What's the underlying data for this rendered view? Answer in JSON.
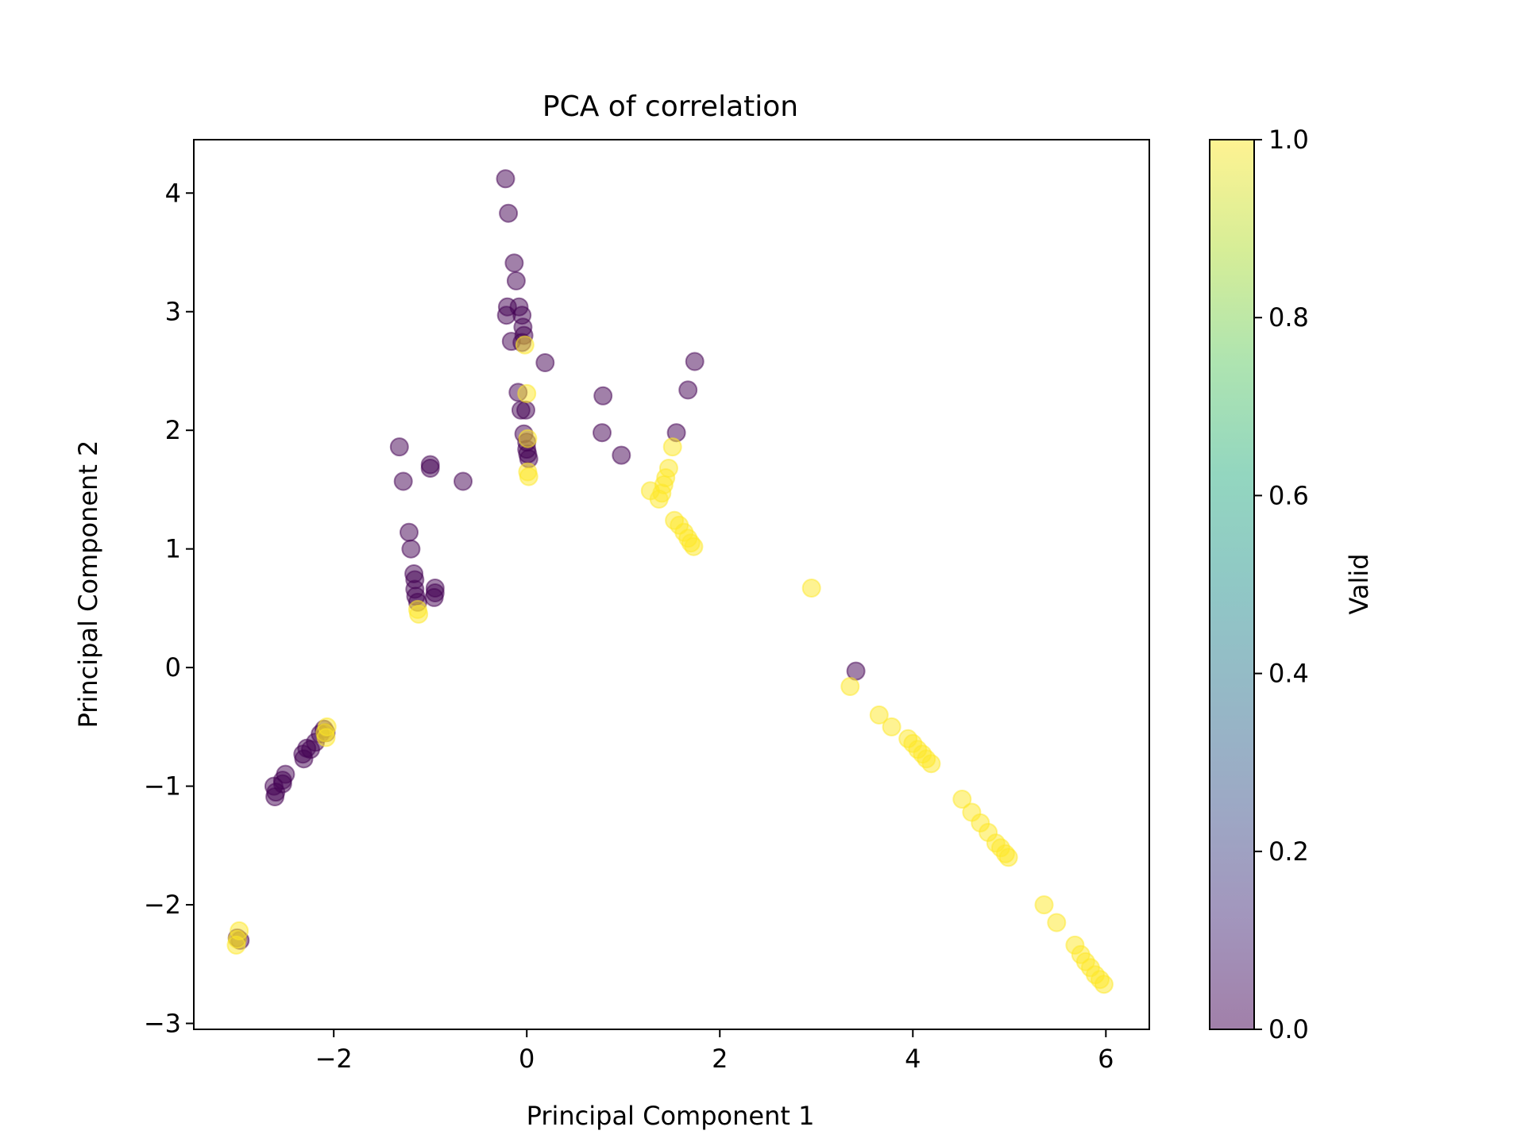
{
  "chart_data": {
    "type": "scatter",
    "title": "PCA of correlation",
    "xlabel": "Principal Component 1",
    "ylabel": "Principal Component 2",
    "xlim": [
      -3.45,
      6.45
    ],
    "ylim": [
      -3.05,
      4.45
    ],
    "xticks": [
      -2,
      0,
      2,
      4,
      6
    ],
    "yticks": [
      -3,
      -2,
      -1,
      0,
      1,
      2,
      3,
      4
    ],
    "grid": false,
    "colorbar": {
      "label": "Valid",
      "colormap": "viridis",
      "range": [
        0.0,
        1.0
      ],
      "ticks": [
        0.0,
        0.2,
        0.4,
        0.6,
        0.8,
        1.0
      ],
      "tick_labels": [
        "0.0",
        "0.2",
        "0.4",
        "0.6",
        "0.8",
        "1.0"
      ]
    },
    "marker_alpha": 0.5,
    "colors": {
      "valid_0": "#440154",
      "valid_1": "#fde725"
    },
    "series": [
      {
        "valid": 0,
        "points": [
          [
            -0.22,
            4.12
          ],
          [
            -0.19,
            3.83
          ],
          [
            -0.13,
            3.41
          ],
          [
            -0.11,
            3.26
          ],
          [
            -0.2,
            3.04
          ],
          [
            -0.21,
            2.97
          ],
          [
            -0.08,
            3.04
          ],
          [
            -0.05,
            2.97
          ],
          [
            -0.04,
            2.87
          ],
          [
            -0.03,
            2.8
          ],
          [
            -0.05,
            2.74
          ],
          [
            -0.16,
            2.75
          ],
          [
            0.19,
            2.57
          ],
          [
            -0.09,
            2.32
          ],
          [
            -0.06,
            2.17
          ],
          [
            -0.01,
            2.17
          ],
          [
            -0.03,
            1.97
          ],
          [
            0.0,
            1.9
          ],
          [
            0.0,
            1.84
          ],
          [
            0.01,
            1.8
          ],
          [
            0.02,
            1.76
          ],
          [
            0.79,
            2.29
          ],
          [
            0.78,
            1.98
          ],
          [
            0.98,
            1.79
          ],
          [
            1.74,
            2.58
          ],
          [
            1.67,
            2.34
          ],
          [
            1.55,
            1.98
          ],
          [
            -1.32,
            1.86
          ],
          [
            -1.28,
            1.57
          ],
          [
            -0.66,
            1.57
          ],
          [
            -1.0,
            1.71
          ],
          [
            -1.0,
            1.68
          ],
          [
            -1.22,
            1.14
          ],
          [
            -1.2,
            1.0
          ],
          [
            -1.17,
            0.79
          ],
          [
            -1.16,
            0.74
          ],
          [
            -1.16,
            0.66
          ],
          [
            -1.15,
            0.6
          ],
          [
            -1.13,
            0.55
          ],
          [
            -0.95,
            0.67
          ],
          [
            -0.95,
            0.63
          ],
          [
            -0.96,
            0.59
          ],
          [
            3.41,
            -0.03
          ],
          [
            -2.62,
            -1.0
          ],
          [
            -2.6,
            -1.05
          ],
          [
            -2.61,
            -1.09
          ],
          [
            -2.53,
            -0.95
          ],
          [
            -2.5,
            -0.9
          ],
          [
            -2.53,
            -0.98
          ],
          [
            -2.32,
            -0.73
          ],
          [
            -2.28,
            -0.68
          ],
          [
            -2.31,
            -0.77
          ],
          [
            -2.24,
            -0.69
          ],
          [
            -2.19,
            -0.63
          ],
          [
            -2.14,
            -0.56
          ],
          [
            -2.1,
            -0.52
          ],
          [
            -2.08,
            -0.55
          ],
          [
            -3.0,
            -2.28
          ],
          [
            -2.97,
            -2.3
          ]
        ]
      },
      {
        "valid": 1,
        "points": [
          [
            -0.02,
            2.72
          ],
          [
            0.0,
            2.31
          ],
          [
            0.01,
            1.93
          ],
          [
            0.01,
            1.65
          ],
          [
            0.02,
            1.61
          ],
          [
            1.51,
            1.86
          ],
          [
            1.47,
            1.68
          ],
          [
            1.44,
            1.6
          ],
          [
            1.42,
            1.54
          ],
          [
            1.4,
            1.47
          ],
          [
            1.37,
            1.42
          ],
          [
            1.28,
            1.49
          ],
          [
            1.53,
            1.24
          ],
          [
            1.58,
            1.2
          ],
          [
            1.63,
            1.14
          ],
          [
            1.67,
            1.09
          ],
          [
            1.7,
            1.05
          ],
          [
            1.73,
            1.02
          ],
          [
            2.95,
            0.67
          ],
          [
            -1.13,
            0.49
          ],
          [
            -1.12,
            0.45
          ],
          [
            -2.07,
            -0.5
          ],
          [
            -2.08,
            -0.59
          ],
          [
            -2.09,
            -0.55
          ],
          [
            3.35,
            -0.16
          ],
          [
            3.65,
            -0.4
          ],
          [
            3.78,
            -0.5
          ],
          [
            3.95,
            -0.6
          ],
          [
            4.0,
            -0.64
          ],
          [
            4.05,
            -0.69
          ],
          [
            4.1,
            -0.73
          ],
          [
            4.14,
            -0.77
          ],
          [
            4.19,
            -0.81
          ],
          [
            4.51,
            -1.11
          ],
          [
            4.61,
            -1.22
          ],
          [
            4.7,
            -1.31
          ],
          [
            4.78,
            -1.39
          ],
          [
            4.86,
            -1.48
          ],
          [
            4.91,
            -1.52
          ],
          [
            4.96,
            -1.57
          ],
          [
            4.99,
            -1.6
          ],
          [
            5.36,
            -2.0
          ],
          [
            5.49,
            -2.15
          ],
          [
            5.68,
            -2.34
          ],
          [
            5.74,
            -2.42
          ],
          [
            5.79,
            -2.48
          ],
          [
            5.84,
            -2.53
          ],
          [
            5.89,
            -2.59
          ],
          [
            5.94,
            -2.63
          ],
          [
            5.98,
            -2.67
          ],
          [
            -2.98,
            -2.22
          ],
          [
            -3.0,
            -2.29
          ],
          [
            -3.01,
            -2.34
          ]
        ]
      }
    ]
  }
}
